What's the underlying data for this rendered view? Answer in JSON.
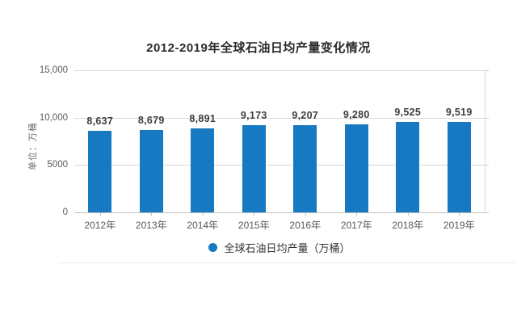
{
  "chart_data": {
    "type": "bar",
    "title": "2012-2019年全球石油日均产量变化情况",
    "ylabel": "单位：万桶",
    "xlabel": "",
    "categories": [
      "2012年",
      "2013年",
      "2014年",
      "2015年",
      "2016年",
      "2017年",
      "2018年",
      "2019年"
    ],
    "values": [
      8637,
      8679,
      8891,
      9173,
      9207,
      9280,
      9525,
      9519
    ],
    "value_labels": [
      "8,637",
      "8,679",
      "8,891",
      "9,173",
      "9,207",
      "9,280",
      "9,525",
      "9,519"
    ],
    "series_name": "全球石油日均产量",
    "ylim": [
      0,
      15000
    ],
    "yticks": [
      {
        "value": 0,
        "label": "0"
      },
      {
        "value": 5000,
        "label": "5000"
      },
      {
        "value": 10000,
        "label": "10,000"
      },
      {
        "value": 15000,
        "label": "15,000"
      }
    ],
    "grid": "horizontal gridlines on, right plot border with outer ticks",
    "legend": {
      "label": "全球石油日均产量（万桶）",
      "position": "bottom"
    },
    "bar_color": "#1779c1",
    "gridline_color": "#d9d9d9",
    "title_color": "#2b2b2b",
    "axis_label_color": "#595959"
  }
}
